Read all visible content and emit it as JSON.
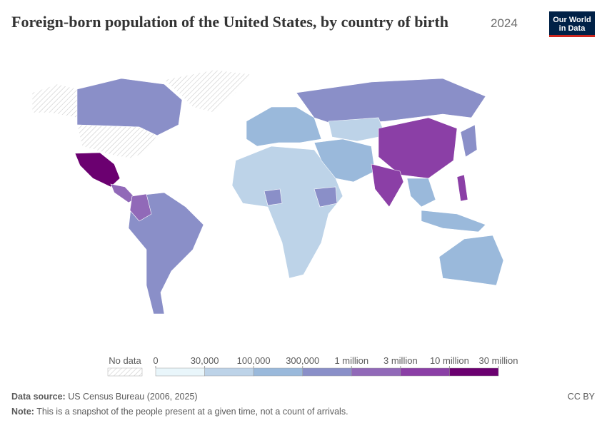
{
  "header": {
    "title": "Foreign-born population of the United States, by country of birth",
    "year": "2024"
  },
  "logo": {
    "line1": "Our World",
    "line2": "in Data"
  },
  "legend": {
    "no_data": "No data",
    "ticks": [
      0,
      {
        "value": 30000,
        "label": "30,000"
      },
      {
        "value": 100000,
        "label": "100,000"
      },
      {
        "value": 300000,
        "label": "300,000"
      },
      {
        "value": 1000000,
        "label": "1 million"
      },
      {
        "value": 3000000,
        "label": "3 million"
      },
      {
        "value": 10000000,
        "label": "10 million"
      },
      {
        "value": 30000000,
        "label": "30 million"
      }
    ],
    "colors": [
      "#e9f6fb",
      "#bdd3e8",
      "#9ab9db",
      "#8a8fc8",
      "#9169b8",
      "#8b3fa6",
      "#6b0070"
    ]
  },
  "footer": {
    "source_label": "Data source:",
    "source": "US Census Bureau (2006, 2025)",
    "license": "CC BY",
    "note_label": "Note:",
    "note": "This is a snapshot of the people present at a given time, not a count of arrivals."
  }
}
